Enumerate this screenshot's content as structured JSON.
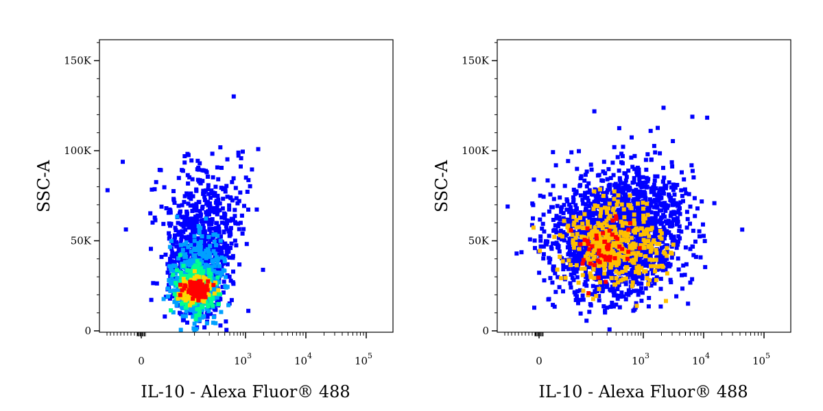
{
  "chart_data": [
    {
      "type": "scatter",
      "title": "",
      "xlabel": "IL-10 - Alexa Fluor® 488",
      "ylabel": "SSC-A",
      "x_scale": "biexponential",
      "x_ticks": [
        {
          "value": 0,
          "label": "0",
          "exp": ""
        },
        {
          "value": 1000,
          "label": "10",
          "exp": "3"
        },
        {
          "value": 10000,
          "label": "10",
          "exp": "4"
        },
        {
          "value": 100000,
          "label": "10",
          "exp": "5"
        }
      ],
      "y_ticks": [
        {
          "value": 0,
          "label": "0"
        },
        {
          "value": 50000,
          "label": "50K"
        },
        {
          "value": 100000,
          "label": "100K"
        },
        {
          "value": 150000,
          "label": "150K"
        }
      ],
      "ylim": [
        0,
        160000
      ],
      "grid": false,
      "color_mode": "density",
      "density_colors": [
        "#0000ff",
        "#00a0ff",
        "#00ff90",
        "#ffd700",
        "#ff0000"
      ],
      "population": {
        "description": "tight cluster",
        "center": {
          "x": 100,
          "y": 24000
        },
        "points_sampled": [
          {
            "x": -120,
            "y": 95000
          },
          {
            "x": 300,
            "y": 103000
          },
          {
            "x": 1500,
            "y": 102000
          },
          {
            "x": 400,
            "y": 44000
          },
          {
            "x": 700,
            "y": 38000
          },
          {
            "x": 1800,
            "y": 35000
          }
        ]
      }
    },
    {
      "type": "scatter",
      "title": "",
      "xlabel": "IL-10 - Alexa Fluor® 488",
      "ylabel": "SSC-A",
      "x_scale": "biexponential",
      "x_ticks": [
        {
          "value": 0,
          "label": "0",
          "exp": ""
        },
        {
          "value": 1000,
          "label": "10",
          "exp": "3"
        },
        {
          "value": 10000,
          "label": "10",
          "exp": "4"
        },
        {
          "value": 100000,
          "label": "10",
          "exp": "5"
        }
      ],
      "y_ticks": [
        {
          "value": 0,
          "label": "0"
        },
        {
          "value": 50000,
          "label": "50K"
        },
        {
          "value": 100000,
          "label": "100K"
        },
        {
          "value": 150000,
          "label": "150K"
        }
      ],
      "ylim": [
        0,
        160000
      ],
      "grid": false,
      "color_mode": "density",
      "density_colors": [
        "#0000ff",
        "#ffc000",
        "#ff0000"
      ],
      "population": {
        "description": "broad cloud",
        "center": {
          "x": 300,
          "y": 55000
        },
        "points_sampled": [
          {
            "x": 6000,
            "y": 120000
          },
          {
            "x": 2000,
            "y": 125000
          },
          {
            "x": 100,
            "y": 123000
          },
          {
            "x": -40,
            "y": 14000
          },
          {
            "x": 6000,
            "y": 48000
          },
          {
            "x": 4000,
            "y": 32000
          }
        ]
      }
    }
  ]
}
